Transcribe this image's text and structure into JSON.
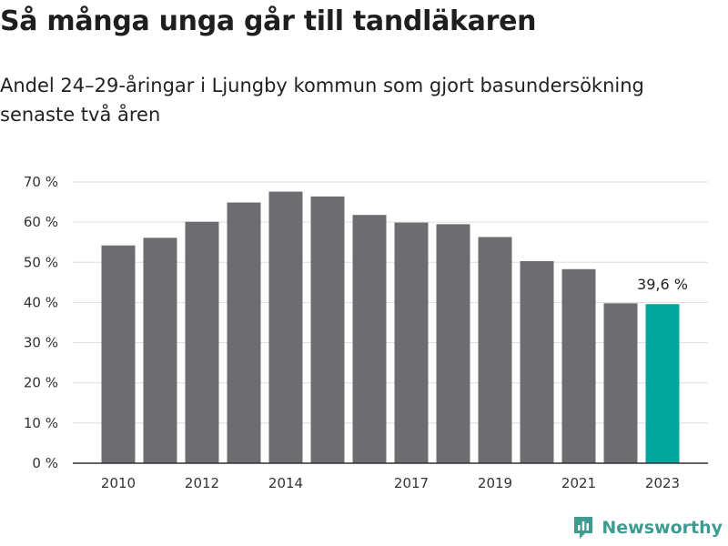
{
  "title": "Så många unga går till tandläkaren",
  "subtitle": "Andel 24–29-åringar i Ljungby kommun som gjort basundersökning senaste två åren",
  "brand": "Newsworthy",
  "colors": {
    "bar": "#6d6c71",
    "highlight": "#00a69c",
    "grid": "#dddddd",
    "axis": "#333333",
    "brand": "#3c9c8f"
  },
  "chart_data": {
    "type": "bar",
    "categories": [
      "2010",
      "2011",
      "2012",
      "2013",
      "2014",
      "2015",
      "2016",
      "2017",
      "2018",
      "2019",
      "2020",
      "2021",
      "2022",
      "2023"
    ],
    "x_tick_labels": [
      "2010",
      "",
      "2012",
      "",
      "2014",
      "",
      "",
      "2017",
      "",
      "2019",
      "",
      "2021",
      "",
      "2023"
    ],
    "values": [
      54.2,
      56.1,
      60.1,
      64.9,
      67.6,
      66.4,
      61.8,
      59.9,
      59.5,
      56.3,
      50.3,
      48.3,
      39.8,
      39.6
    ],
    "highlight_index": 13,
    "highlight_label": "39,6 %",
    "ylim": [
      0,
      70
    ],
    "y_ticks": [
      0,
      10,
      20,
      30,
      40,
      50,
      60,
      70
    ],
    "y_tick_labels": [
      "0 %",
      "10 %",
      "20 %",
      "30 %",
      "40 %",
      "50 %",
      "60 %",
      "70 %"
    ],
    "grid": true,
    "xlabel": "",
    "ylabel": ""
  }
}
